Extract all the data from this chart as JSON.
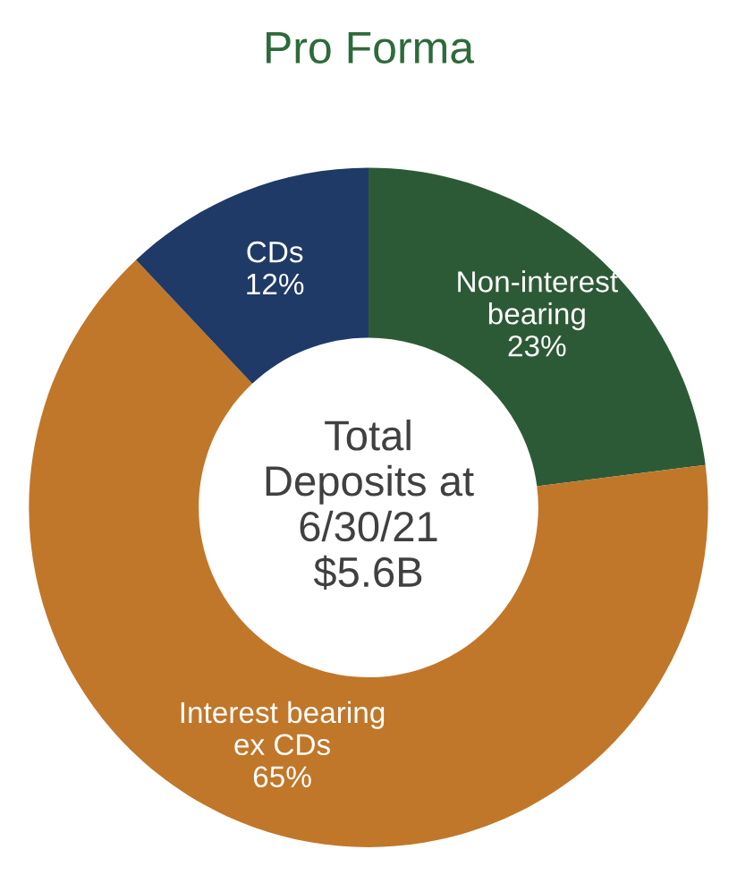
{
  "chart_data": {
    "type": "donut",
    "title": "Pro Forma",
    "categories": [
      "Non-interest\nbearing",
      "Interest bearing\nex CDs",
      "CDs"
    ],
    "values": [
      23,
      65,
      12
    ],
    "colors": [
      "#2d5a36",
      "#c0772a",
      "#1f3a66"
    ],
    "value_labels": [
      "23%",
      "65%",
      "12%"
    ],
    "annotations": [
      "Total\nDeposits at\n6/30/21\n$5.6B"
    ]
  }
}
